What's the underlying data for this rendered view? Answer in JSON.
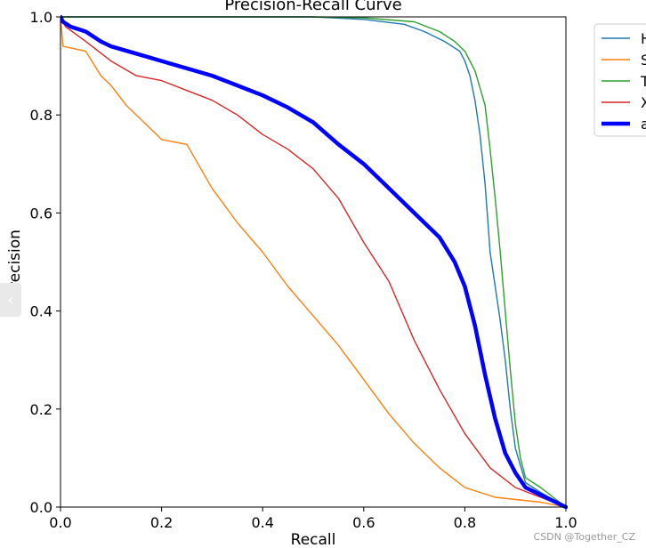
{
  "chart_data": {
    "type": "line",
    "title": "Precision-Recall Curve",
    "xlabel": "Recall",
    "ylabel": "Precision",
    "xlim": [
      0.0,
      1.0
    ],
    "ylim": [
      0.0,
      1.0
    ],
    "xticks": [
      "0.0",
      "0.2",
      "0.4",
      "0.6",
      "0.8",
      "1.0"
    ],
    "yticks": [
      "0.0",
      "0.2",
      "0.4",
      "0.6",
      "0.8",
      "1.0"
    ],
    "grid": false,
    "legend_position": "outside-top-right",
    "series": [
      {
        "name": "H",
        "color": "#1f77b4",
        "x": [
          0.0,
          0.5,
          0.6,
          0.68,
          0.72,
          0.76,
          0.79,
          0.8,
          0.81,
          0.82,
          0.83,
          0.84,
          0.845,
          0.85,
          0.86,
          0.87,
          0.88,
          0.89,
          0.9,
          0.92,
          0.95,
          1.0
        ],
        "y": [
          1.0,
          1.0,
          0.995,
          0.985,
          0.97,
          0.95,
          0.93,
          0.91,
          0.88,
          0.83,
          0.76,
          0.66,
          0.59,
          0.52,
          0.45,
          0.38,
          0.3,
          0.2,
          0.12,
          0.05,
          0.03,
          0.0
        ]
      },
      {
        "name": "S",
        "color": "#ff7f0e",
        "x": [
          0.0,
          0.005,
          0.05,
          0.08,
          0.1,
          0.13,
          0.16,
          0.2,
          0.25,
          0.3,
          0.35,
          0.4,
          0.45,
          0.5,
          0.55,
          0.6,
          0.65,
          0.7,
          0.75,
          0.8,
          0.86,
          0.95,
          1.0
        ],
        "y": [
          1.0,
          0.94,
          0.93,
          0.88,
          0.86,
          0.82,
          0.79,
          0.75,
          0.74,
          0.65,
          0.58,
          0.52,
          0.45,
          0.39,
          0.33,
          0.26,
          0.19,
          0.13,
          0.08,
          0.04,
          0.02,
          0.01,
          0.0
        ]
      },
      {
        "name": "T",
        "color": "#2ca02c",
        "x": [
          0.0,
          0.5,
          0.6,
          0.7,
          0.75,
          0.78,
          0.8,
          0.82,
          0.84,
          0.85,
          0.86,
          0.87,
          0.88,
          0.89,
          0.9,
          0.91,
          0.92,
          0.95,
          1.0
        ],
        "y": [
          1.0,
          1.0,
          0.998,
          0.99,
          0.97,
          0.95,
          0.93,
          0.89,
          0.82,
          0.73,
          0.63,
          0.52,
          0.4,
          0.28,
          0.17,
          0.1,
          0.06,
          0.04,
          0.0
        ]
      },
      {
        "name": "X",
        "color": "#d62728",
        "x": [
          0.0,
          0.01,
          0.05,
          0.1,
          0.15,
          0.2,
          0.25,
          0.3,
          0.35,
          0.4,
          0.45,
          0.5,
          0.55,
          0.6,
          0.65,
          0.7,
          0.75,
          0.8,
          0.85,
          0.9,
          0.95,
          1.0
        ],
        "y": [
          1.0,
          0.98,
          0.95,
          0.91,
          0.88,
          0.87,
          0.85,
          0.83,
          0.8,
          0.76,
          0.73,
          0.69,
          0.63,
          0.54,
          0.46,
          0.34,
          0.24,
          0.15,
          0.08,
          0.04,
          0.02,
          0.0
        ]
      },
      {
        "name": "a",
        "color": "#0000ff",
        "bold": true,
        "x": [
          0.0,
          0.005,
          0.02,
          0.05,
          0.08,
          0.1,
          0.15,
          0.2,
          0.25,
          0.3,
          0.35,
          0.4,
          0.45,
          0.5,
          0.55,
          0.6,
          0.65,
          0.7,
          0.75,
          0.78,
          0.8,
          0.82,
          0.84,
          0.86,
          0.88,
          0.9,
          0.92,
          1.0
        ],
        "y": [
          1.0,
          0.99,
          0.98,
          0.97,
          0.95,
          0.94,
          0.925,
          0.91,
          0.895,
          0.88,
          0.86,
          0.84,
          0.815,
          0.785,
          0.74,
          0.7,
          0.65,
          0.6,
          0.55,
          0.5,
          0.45,
          0.37,
          0.27,
          0.18,
          0.11,
          0.07,
          0.04,
          0.0
        ]
      }
    ]
  },
  "watermark": "CSDN @Together_CZ"
}
